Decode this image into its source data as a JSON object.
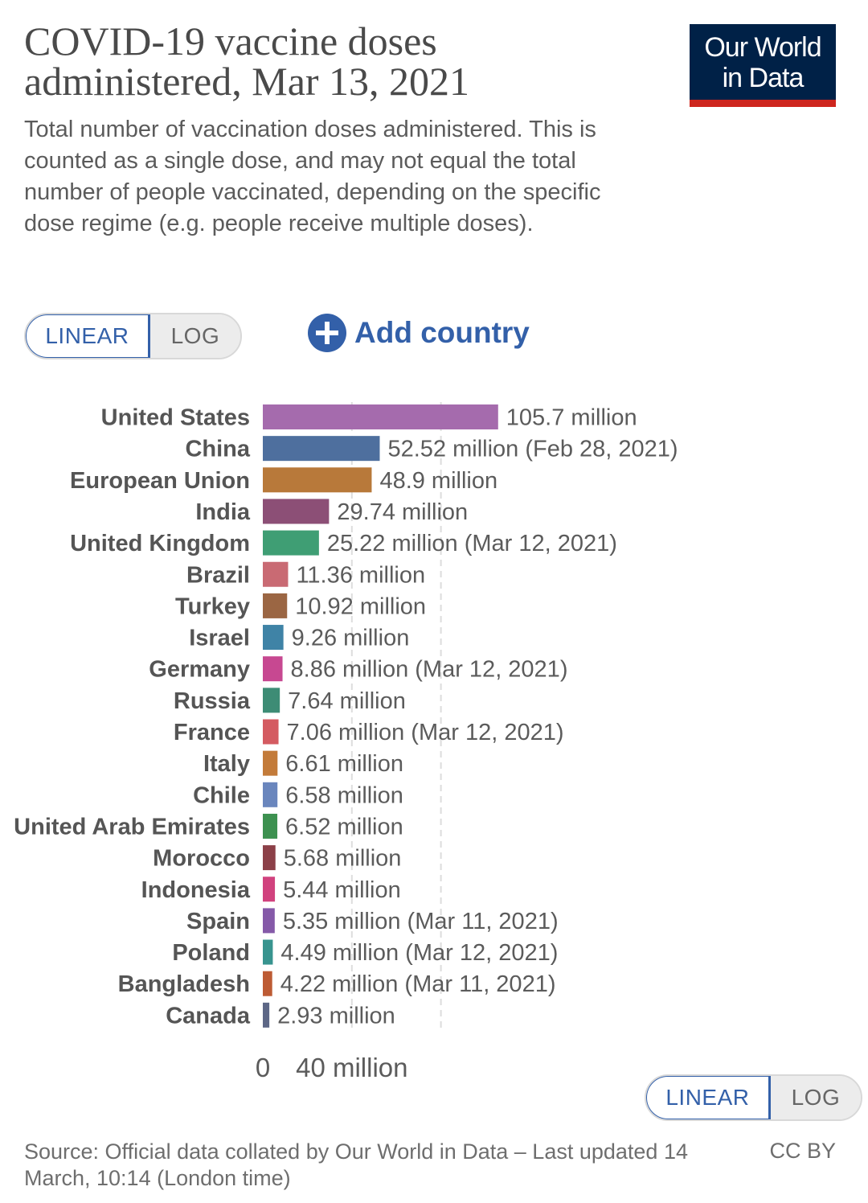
{
  "header": {
    "title": "COVID-19 vaccine doses administered, Mar 13, 2021",
    "subtitle": "Total number of vaccination doses administered. This is counted as a single dose, and may not equal the total number of people vaccinated, depending on the specific dose regime (e.g. people receive multiple doses).",
    "logo_line1": "Our World",
    "logo_line2": "in Data"
  },
  "controls": {
    "linear_label": "LINEAR",
    "log_label": "LOG",
    "add_country_label": "Add country"
  },
  "colors": {
    "accent": "#3360a9",
    "logo_bg": "#002147",
    "logo_stripe": "#ce261e"
  },
  "chart_data": {
    "type": "bar",
    "orientation": "horizontal",
    "scale": "linear",
    "xlim": [
      0,
      120
    ],
    "x_ticks": [
      0,
      40,
      80
    ],
    "x_tick_labels": [
      "0",
      "40 million",
      ""
    ],
    "gridlines": true,
    "categories": [
      "United States",
      "China",
      "European Union",
      "India",
      "United Kingdom",
      "Brazil",
      "Turkey",
      "Israel",
      "Germany",
      "Russia",
      "France",
      "Italy",
      "Chile",
      "United Arab Emirates",
      "Morocco",
      "Indonesia",
      "Spain",
      "Poland",
      "Bangladesh",
      "Canada"
    ],
    "values": [
      105.7,
      52.52,
      48.9,
      29.74,
      25.22,
      11.36,
      10.92,
      9.26,
      8.86,
      7.64,
      7.06,
      6.61,
      6.58,
      6.52,
      5.68,
      5.44,
      5.35,
      4.49,
      4.22,
      2.93
    ],
    "value_labels": [
      "105.7 million",
      "52.52 million (Feb 28, 2021)",
      "48.9 million",
      "29.74 million",
      "25.22 million (Mar 12, 2021)",
      "11.36 million",
      "10.92 million",
      "9.26 million",
      "8.86 million (Mar 12, 2021)",
      "7.64 million",
      "7.06 million (Mar 12, 2021)",
      "6.61 million",
      "6.58 million",
      "6.52 million",
      "5.68 million",
      "5.44 million",
      "5.35 million (Mar 11, 2021)",
      "4.49 million (Mar 12, 2021)",
      "4.22 million (Mar 11, 2021)",
      "2.93 million"
    ],
    "bar_colors": [
      "#a56bad",
      "#4e6f9e",
      "#b8793a",
      "#8c4f76",
      "#3f9e74",
      "#c96a73",
      "#9b6643",
      "#3f83a6",
      "#c74891",
      "#3d8c75",
      "#d45b61",
      "#c37b3a",
      "#6a86bd",
      "#3d9150",
      "#8c4048",
      "#d1427e",
      "#8559a8",
      "#38948f",
      "#bd5b34",
      "#5d6786"
    ]
  },
  "footer": {
    "source": "Source: Official data collated by Our World in Data – Last updated 14 March, 10:14 (London time)",
    "license": "CC BY"
  }
}
